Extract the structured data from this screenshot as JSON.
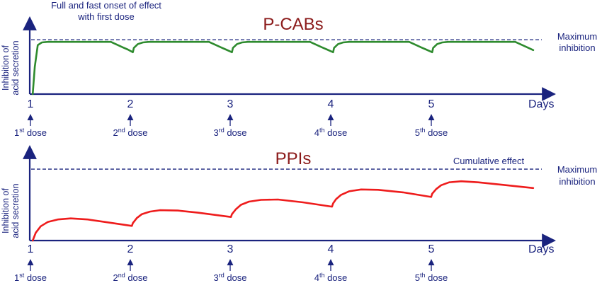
{
  "chart_data": [
    {
      "type": "line",
      "title": "P-CABs",
      "ylabel": [
        "Inhibition of",
        "acid secretion"
      ],
      "xlabel": "Days",
      "categories": [
        "1",
        "2",
        "3",
        "4",
        "5"
      ],
      "dose_labels": [
        {
          "ord": "1",
          "sup": "st",
          "text": "dose"
        },
        {
          "ord": "2",
          "sup": "nd",
          "text": "dose"
        },
        {
          "ord": "3",
          "sup": "rd",
          "text": "dose"
        },
        {
          "ord": "4",
          "sup": "th",
          "text": "dose"
        },
        {
          "ord": "5",
          "sup": "th",
          "text": "dose"
        }
      ],
      "annotation": [
        "Full and fast onset of effect",
        "with first dose"
      ],
      "reference_line": {
        "label": [
          "Maximum",
          "inhibition"
        ],
        "value": 1.0
      },
      "xlim": [
        0.97,
        6.05
      ],
      "ylim": [
        0,
        1.08
      ],
      "series": [
        {
          "color": "#2e8b2e",
          "points": [
            [
              1.0,
              0.0
            ],
            [
              1.02,
              0.5
            ],
            [
              1.05,
              0.9
            ],
            [
              1.09,
              0.95
            ],
            [
              1.15,
              0.96
            ],
            [
              1.78,
              0.96
            ],
            [
              1.84,
              0.91
            ],
            [
              1.9,
              0.86
            ],
            [
              1.95,
              0.82
            ],
            [
              2.0,
              0.77
            ],
            [
              2.01,
              0.85
            ],
            [
              2.05,
              0.92
            ],
            [
              2.1,
              0.95
            ],
            [
              2.16,
              0.96
            ],
            [
              2.76,
              0.96
            ],
            [
              2.82,
              0.91
            ],
            [
              2.88,
              0.86
            ],
            [
              2.93,
              0.82
            ],
            [
              2.99,
              0.77
            ],
            [
              3.0,
              0.85
            ],
            [
              3.04,
              0.92
            ],
            [
              3.09,
              0.95
            ],
            [
              3.15,
              0.96
            ],
            [
              3.77,
              0.96
            ],
            [
              3.83,
              0.91
            ],
            [
              3.89,
              0.86
            ],
            [
              3.94,
              0.82
            ],
            [
              4.0,
              0.77
            ],
            [
              4.01,
              0.85
            ],
            [
              4.05,
              0.92
            ],
            [
              4.1,
              0.95
            ],
            [
              4.16,
              0.96
            ],
            [
              4.76,
              0.96
            ],
            [
              4.82,
              0.91
            ],
            [
              4.88,
              0.86
            ],
            [
              4.93,
              0.82
            ],
            [
              4.99,
              0.77
            ],
            [
              5.0,
              0.85
            ],
            [
              5.04,
              0.92
            ],
            [
              5.09,
              0.95
            ],
            [
              5.15,
              0.96
            ],
            [
              5.82,
              0.96
            ],
            [
              5.88,
              0.91
            ],
            [
              5.94,
              0.86
            ],
            [
              6.0,
              0.81
            ]
          ]
        }
      ]
    },
    {
      "type": "line",
      "title": "PPIs",
      "ylabel": [
        "Inhibition of",
        "acid secretion"
      ],
      "xlabel": "Days",
      "categories": [
        "1",
        "2",
        "3",
        "4",
        "5"
      ],
      "dose_labels": [
        {
          "ord": "1",
          "sup": "st",
          "text": "dose"
        },
        {
          "ord": "2",
          "sup": "nd",
          "text": "dose"
        },
        {
          "ord": "3",
          "sup": "rd",
          "text": "dose"
        },
        {
          "ord": "4",
          "sup": "th",
          "text": "dose"
        },
        {
          "ord": "5",
          "sup": "th",
          "text": "dose"
        }
      ],
      "annotation": [
        "Cumulative effect"
      ],
      "reference_line": {
        "label": [
          "Maximum",
          "inhibition"
        ],
        "value": 1.0
      },
      "xlim": [
        0.97,
        6.05
      ],
      "ylim": [
        0,
        1.08
      ],
      "series": [
        {
          "color": "#ee1c1c",
          "points": [
            [
              1.0,
              0.0
            ],
            [
              1.03,
              0.11
            ],
            [
              1.08,
              0.2
            ],
            [
              1.15,
              0.26
            ],
            [
              1.25,
              0.295
            ],
            [
              1.38,
              0.31
            ],
            [
              1.55,
              0.295
            ],
            [
              1.75,
              0.255
            ],
            [
              1.99,
              0.205
            ],
            [
              2.0,
              0.245
            ],
            [
              2.04,
              0.315
            ],
            [
              2.09,
              0.37
            ],
            [
              2.17,
              0.405
            ],
            [
              2.27,
              0.425
            ],
            [
              2.45,
              0.42
            ],
            [
              2.65,
              0.39
            ],
            [
              2.98,
              0.33
            ],
            [
              2.99,
              0.37
            ],
            [
              3.03,
              0.44
            ],
            [
              3.08,
              0.5
            ],
            [
              3.16,
              0.545
            ],
            [
              3.28,
              0.57
            ],
            [
              3.45,
              0.575
            ],
            [
              3.7,
              0.535
            ],
            [
              3.99,
              0.475
            ],
            [
              4.0,
              0.52
            ],
            [
              4.03,
              0.58
            ],
            [
              4.08,
              0.64
            ],
            [
              4.16,
              0.69
            ],
            [
              4.28,
              0.715
            ],
            [
              4.45,
              0.71
            ],
            [
              4.7,
              0.675
            ],
            [
              4.98,
              0.61
            ],
            [
              4.99,
              0.655
            ],
            [
              5.03,
              0.72
            ],
            [
              5.08,
              0.775
            ],
            [
              5.16,
              0.815
            ],
            [
              5.28,
              0.83
            ],
            [
              5.45,
              0.815
            ],
            [
              5.7,
              0.78
            ],
            [
              6.0,
              0.735
            ]
          ]
        }
      ]
    }
  ]
}
